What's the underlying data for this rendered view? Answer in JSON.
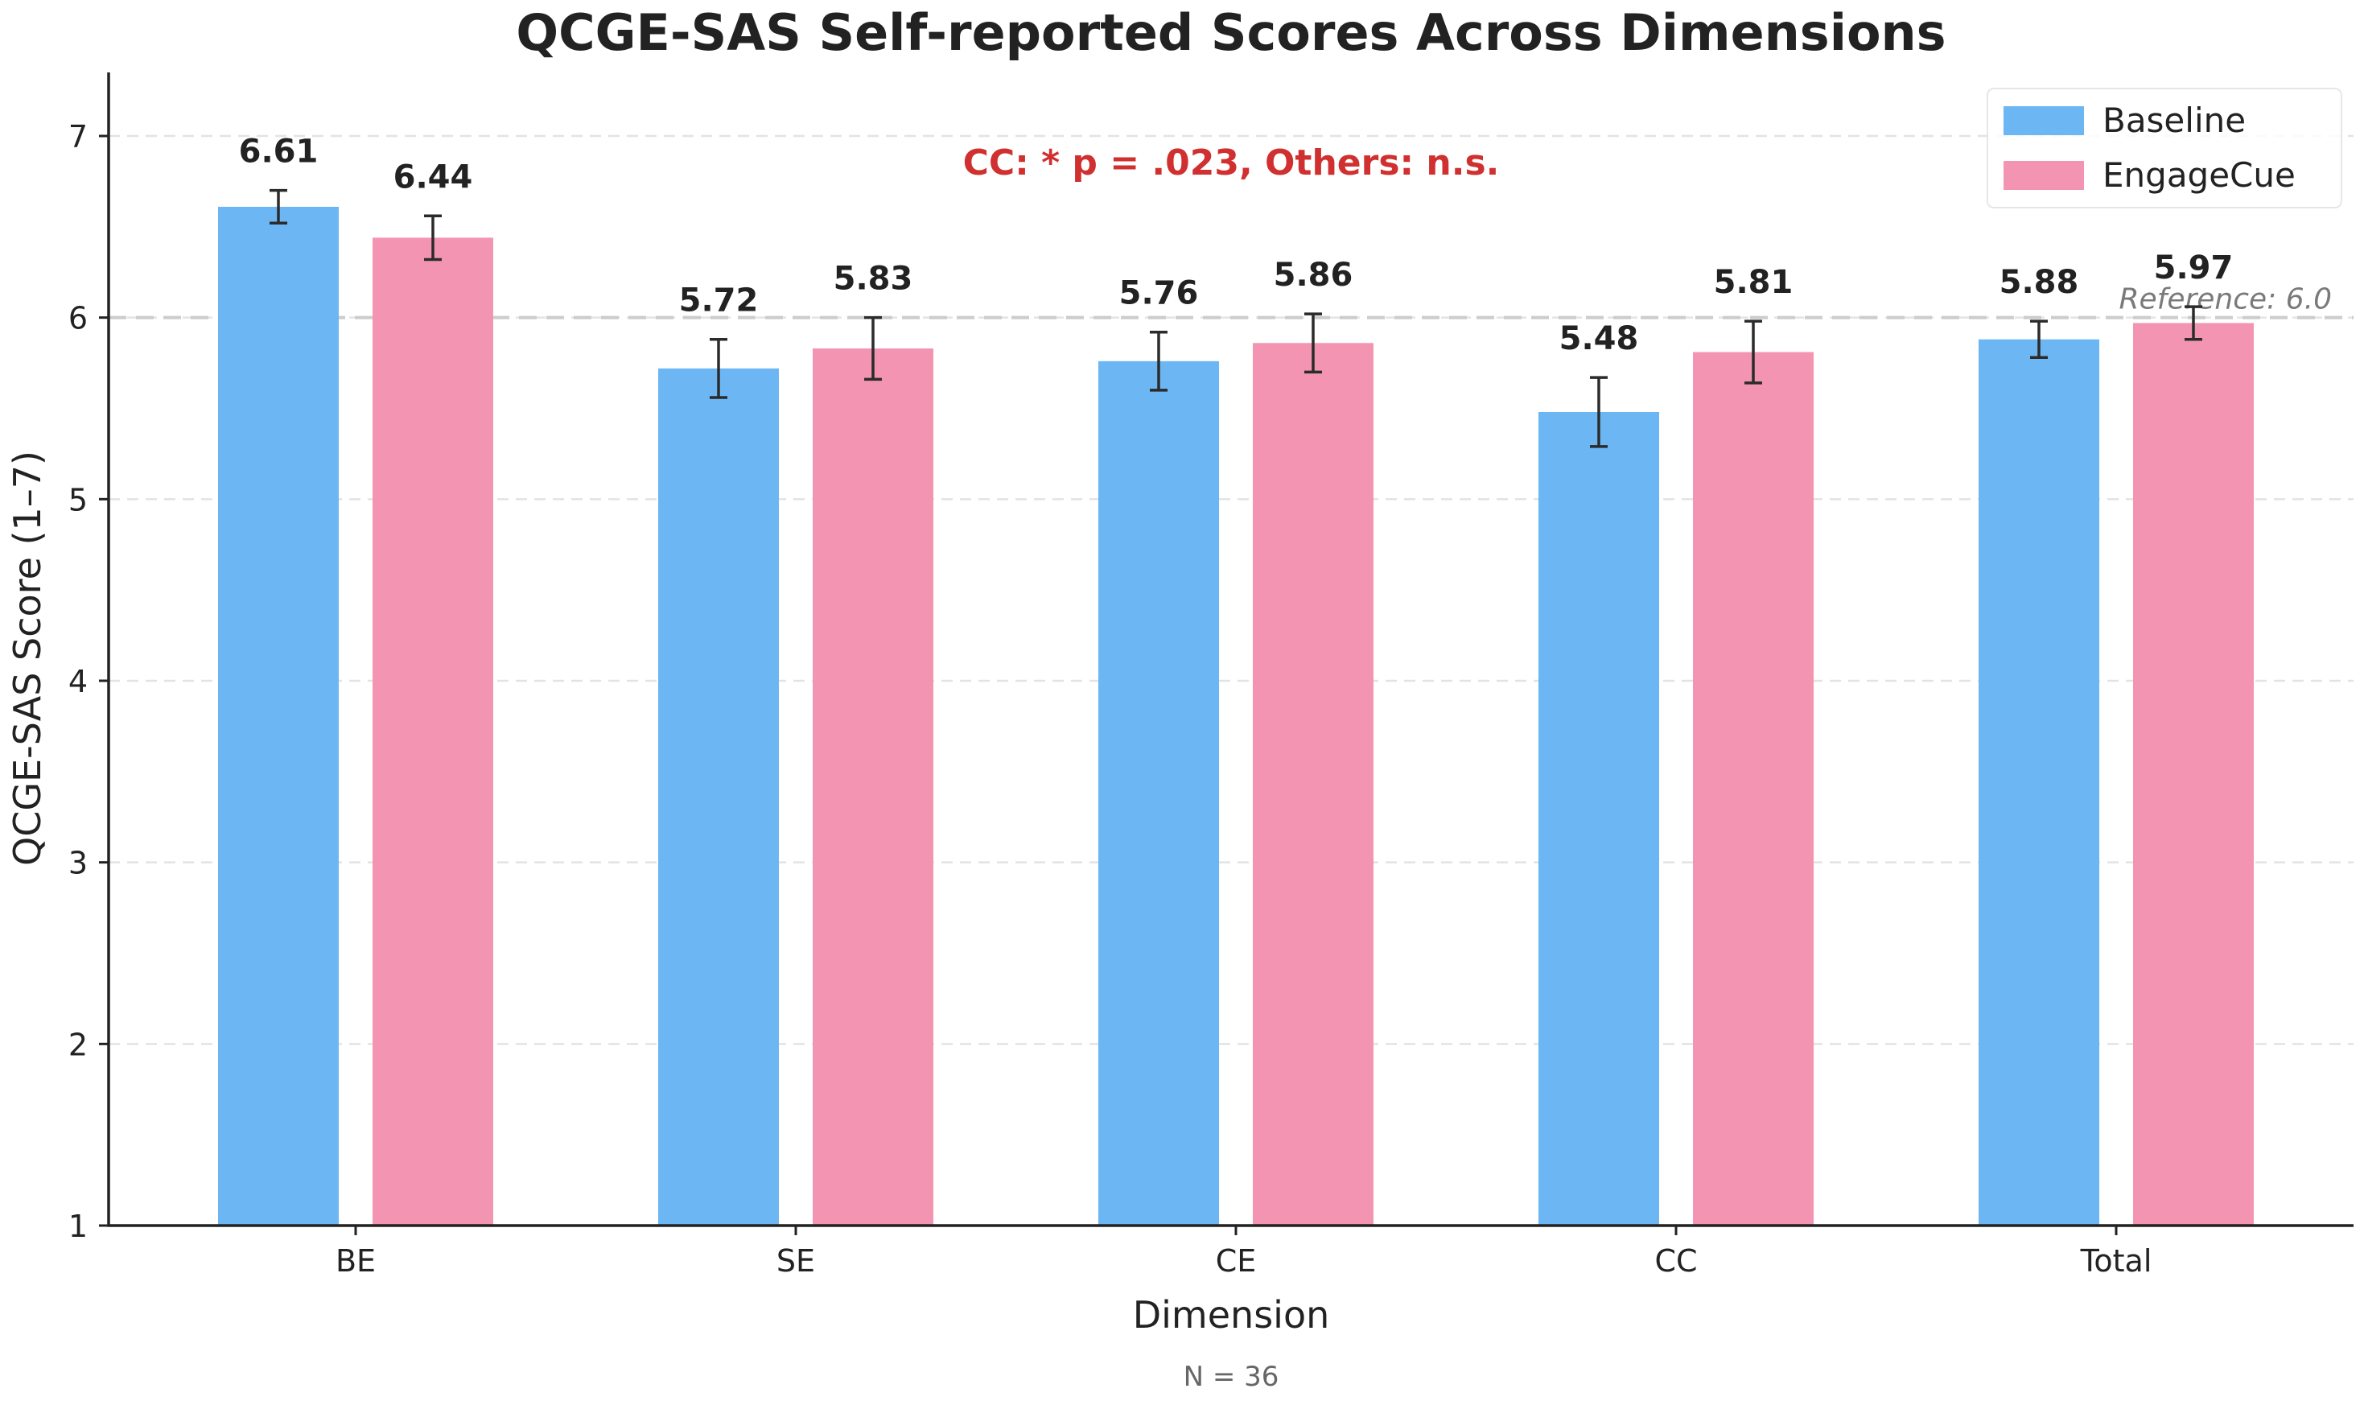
{
  "chart_data": {
    "type": "bar",
    "title": "QCGE-SAS Self-reported Scores Across Dimensions",
    "xlabel": "Dimension",
    "ylabel": "QCGE-SAS Score (1–7)",
    "categories": [
      "BE",
      "SE",
      "CE",
      "CC",
      "Total"
    ],
    "ylim": [
      1,
      7.35
    ],
    "yticks": [
      "1",
      "2",
      "3",
      "4",
      "5",
      "6",
      "7"
    ],
    "grid": "horizontal dashed",
    "legend_position": "top-right",
    "series": [
      {
        "name": "Baseline",
        "color": "#6cb7f3",
        "values": [
          6.61,
          5.72,
          5.76,
          5.48,
          5.88
        ],
        "labels": [
          "6.61",
          "5.72",
          "5.76",
          "5.48",
          "5.88"
        ],
        "error": [
          0.09,
          0.16,
          0.16,
          0.19,
          0.1
        ]
      },
      {
        "name": "EngageCue",
        "color": "#f395b2",
        "values": [
          6.44,
          5.83,
          5.86,
          5.81,
          5.97
        ],
        "labels": [
          "6.44",
          "5.83",
          "5.86",
          "5.81",
          "5.97"
        ],
        "error": [
          0.12,
          0.17,
          0.16,
          0.17,
          0.09
        ]
      }
    ],
    "reference": {
      "value": 6.0,
      "label": "Reference: 6.0"
    },
    "annotation": {
      "text": "CC: * p = .023, Others: n.s.",
      "color": "#d0302f"
    },
    "footnote": "N = 36"
  }
}
